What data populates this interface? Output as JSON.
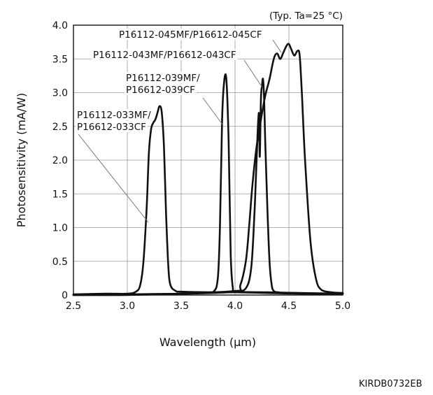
{
  "chart_data": {
    "type": "line",
    "condition": "(Typ. Ta=25 °C)",
    "xlabel": "Wavelength (µm)",
    "ylabel": "Photosensitivity (mA/W)",
    "xlim": [
      2.5,
      5.0
    ],
    "ylim": [
      0,
      4.0
    ],
    "x_ticks": [
      2.5,
      3.0,
      3.5,
      4.0,
      4.5,
      5.0
    ],
    "x_tick_labels": [
      "2.5",
      "3.0",
      "3.5",
      "4.0",
      "4.5",
      "5.0"
    ],
    "y_ticks": [
      0,
      0.5,
      1.0,
      1.5,
      2.0,
      2.5,
      3.0,
      3.5,
      4.0
    ],
    "y_tick_labels": [
      "0",
      "0.5",
      "1.0",
      "1.5",
      "2.0",
      "2.5",
      "3.0",
      "3.5",
      "4.0"
    ],
    "grid": true,
    "series": [
      {
        "label_lines": [
          "P16112-033MF/",
          "P16612-033CF"
        ],
        "x": [
          2.5,
          2.8,
          3.0,
          3.08,
          3.12,
          3.15,
          3.18,
          3.2,
          3.22,
          3.24,
          3.26,
          3.28,
          3.3,
          3.32,
          3.34,
          3.36,
          3.38,
          3.4,
          3.45,
          3.5,
          3.8,
          4.0,
          4.3,
          4.6,
          5.0
        ],
        "y": [
          0.01,
          0.02,
          0.02,
          0.05,
          0.15,
          0.5,
          1.3,
          2.1,
          2.45,
          2.55,
          2.6,
          2.7,
          2.8,
          2.7,
          2.2,
          1.2,
          0.45,
          0.15,
          0.06,
          0.05,
          0.04,
          0.04,
          0.03,
          0.02,
          0.02
        ]
      },
      {
        "label_lines": [
          "P16112-039MF/",
          "P16612-039CF"
        ],
        "x": [
          2.5,
          3.0,
          3.5,
          3.7,
          3.8,
          3.84,
          3.86,
          3.88,
          3.9,
          3.92,
          3.94,
          3.96,
          3.98,
          4.0,
          4.3,
          4.6,
          5.0
        ],
        "y": [
          0.0,
          0.01,
          0.02,
          0.03,
          0.05,
          0.25,
          1.0,
          2.6,
          3.18,
          3.18,
          2.3,
          0.6,
          0.1,
          0.05,
          0.04,
          0.03,
          0.02
        ]
      },
      {
        "label_lines": [
          "P16112-043MF/P16612-043CF"
        ],
        "x": [
          2.5,
          3.0,
          3.5,
          3.8,
          4.0,
          4.1,
          4.15,
          4.18,
          4.2,
          4.22,
          4.23,
          4.24,
          4.25,
          4.26,
          4.27,
          4.28,
          4.3,
          4.32,
          4.34,
          4.36,
          4.4,
          4.5,
          5.0
        ],
        "y": [
          0.0,
          0.0,
          0.02,
          0.04,
          0.06,
          0.1,
          0.4,
          1.2,
          2.0,
          2.7,
          2.05,
          2.9,
          3.1,
          3.2,
          2.9,
          2.3,
          1.3,
          0.5,
          0.15,
          0.06,
          0.04,
          0.03,
          0.02
        ]
      },
      {
        "label_lines": [
          "P16112-045MF/P16612-045CF"
        ],
        "x": [
          2.5,
          3.0,
          3.5,
          4.0,
          4.05,
          4.1,
          4.13,
          4.16,
          4.2,
          4.24,
          4.28,
          4.32,
          4.36,
          4.39,
          4.42,
          4.45,
          4.48,
          4.5,
          4.52,
          4.55,
          4.58,
          4.6,
          4.62,
          4.65,
          4.7,
          4.75,
          4.8,
          4.9,
          5.0
        ],
        "y": [
          0.0,
          0.01,
          0.02,
          0.05,
          0.15,
          0.5,
          1.0,
          1.6,
          2.2,
          2.6,
          2.95,
          3.2,
          3.5,
          3.58,
          3.5,
          3.6,
          3.7,
          3.72,
          3.65,
          3.55,
          3.62,
          3.55,
          3.0,
          2.0,
          0.8,
          0.25,
          0.08,
          0.04,
          0.03
        ]
      }
    ],
    "footer_code": "KIRDB0732EB"
  }
}
